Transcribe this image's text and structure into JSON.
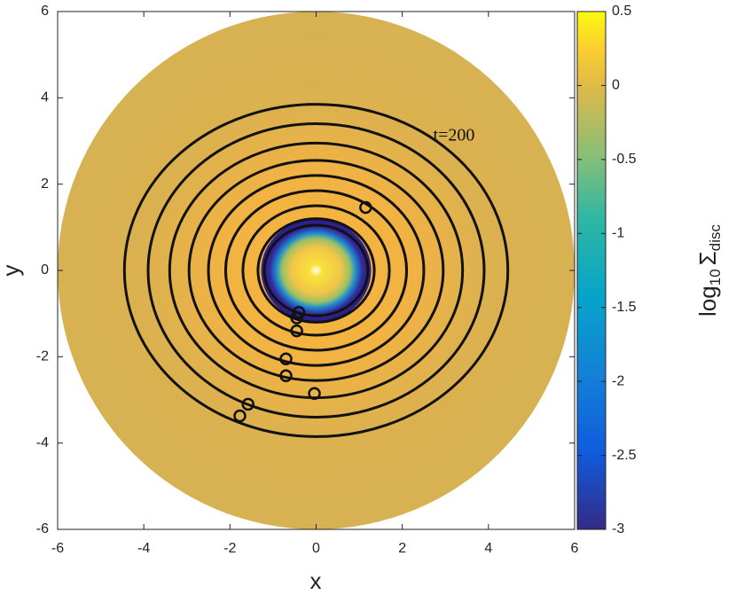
{
  "chart_data": {
    "type": "scatter",
    "xlabel": "x",
    "ylabel": "y",
    "annotation": {
      "text": "t=200",
      "x": 3.2,
      "y": 3.1
    },
    "xlim": [
      -6,
      6
    ],
    "xticks": [
      -6,
      -4,
      -2,
      0,
      2,
      4,
      6
    ],
    "ylim": [
      -6,
      6
    ],
    "yticks": [
      -6,
      -4,
      -2,
      0,
      2,
      4,
      6
    ],
    "x": [
      1.15,
      -0.4,
      -0.45,
      -0.45,
      -0.7,
      -0.7,
      -0.04,
      -1.58,
      -1.77
    ],
    "values": [
      1.46,
      -0.97,
      -1.1,
      -1.4,
      -2.05,
      -2.44,
      -2.85,
      -3.1,
      -3.37
    ],
    "color": "#111111",
    "orbits": [
      {
        "rx": 4.45,
        "ry": 3.85
      },
      {
        "rx": 3.9,
        "ry": 3.4
      },
      {
        "rx": 3.4,
        "ry": 2.95
      },
      {
        "rx": 2.95,
        "ry": 2.55
      },
      {
        "rx": 2.5,
        "ry": 2.2
      },
      {
        "rx": 2.1,
        "ry": 1.85
      },
      {
        "rx": 1.7,
        "ry": 1.5
      },
      {
        "rx": 1.35,
        "ry": 1.2
      },
      {
        "rx": 1.2,
        "ry": 1.05
      }
    ],
    "colorbar": {
      "lim": [
        -3,
        0.5
      ],
      "ticks": [
        0.5,
        0,
        -0.5,
        -1,
        -1.5,
        -2,
        -2.5,
        -3
      ],
      "label": {
        "base": "log",
        "base_sub": "10",
        "symbol": "Σ",
        "symbol_sub": "disc"
      }
    }
  }
}
